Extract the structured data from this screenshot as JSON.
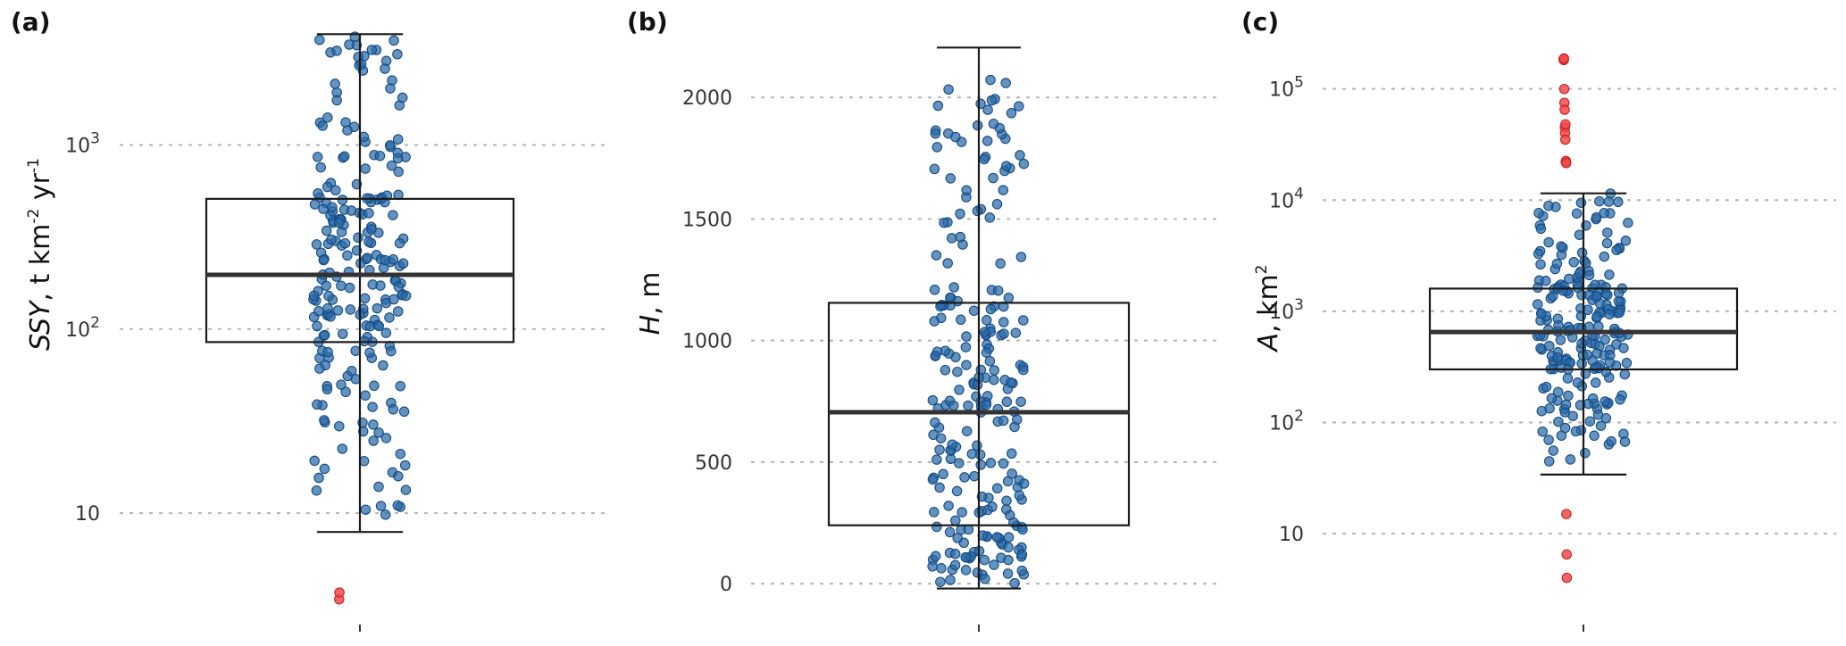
{
  "chart_data": [
    {
      "type": "box",
      "panel_label": "(a)",
      "scale": "log",
      "ylabel": "SSY, t km-2 yr-1",
      "ylabel_parts": [
        "SSY",
        ", t  km",
        "-2",
        "  yr",
        "-1"
      ],
      "yticks": [
        10,
        100,
        1000
      ],
      "ytick_labels": [
        "10",
        "10",
        "10"
      ],
      "ytick_sups": [
        "",
        "2",
        "3"
      ],
      "ylim": [
        3.1,
        4800
      ],
      "box": {
        "whisker_low": 7.9,
        "q1": 85,
        "median": 197,
        "q3": 510,
        "whisker_high": 4000
      },
      "outliers": [
        3.4,
        3.7
      ],
      "n_points": 225,
      "seed": 17,
      "grid": true
    },
    {
      "type": "box",
      "panel_label": "(b)",
      "scale": "linear",
      "ylabel": "H, m",
      "ylabel_parts": [
        "H",
        ", m"
      ],
      "yticks": [
        0,
        500,
        1000,
        1500,
        2000
      ],
      "ytick_labels": [
        "0",
        "500",
        "1000",
        "1500",
        "2000"
      ],
      "ytick_sups": [
        "",
        "",
        "",
        "",
        ""
      ],
      "ylim": [
        -95,
        2320
      ],
      "box": {
        "whisker_low": -20,
        "q1": 240,
        "median": 705,
        "q3": 1155,
        "whisker_high": 2205
      },
      "outliers": [],
      "n_points": 230,
      "seed": 29,
      "grid": true
    },
    {
      "type": "box",
      "panel_label": "(c)",
      "scale": "log",
      "ylabel": "A, km2",
      "ylabel_parts": [
        "A",
        ", km",
        "2"
      ],
      "yticks": [
        10,
        100,
        1000,
        10000,
        100000
      ],
      "ytick_labels": [
        "10",
        "10",
        "10",
        "10",
        "10"
      ],
      "ytick_sups": [
        "",
        "2",
        "3",
        "4",
        "5"
      ],
      "ylim": [
        2.2,
        420000
      ],
      "box": {
        "whisker_low": 34,
        "q1": 300,
        "median": 650,
        "q3": 1600,
        "whisker_high": 11500
      },
      "outliers": [
        185000,
        182000,
        188000,
        100000,
        75000,
        65000,
        45000,
        40000,
        35000,
        48000,
        22000,
        22500,
        21500,
        15,
        6.5,
        4
      ],
      "n_points": 215,
      "seed": 43,
      "grid": true
    }
  ]
}
